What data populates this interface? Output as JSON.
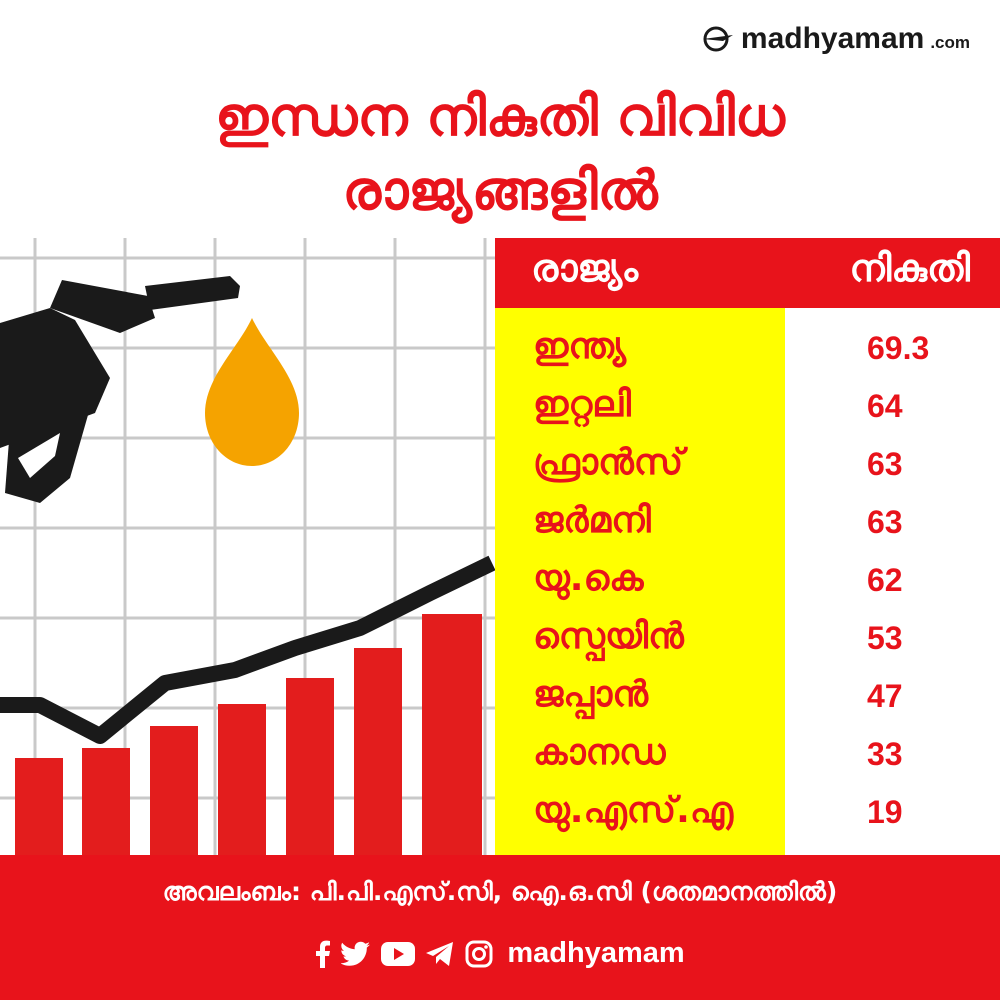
{
  "brand": {
    "name": "madhyamam",
    "domain": ".com"
  },
  "title": {
    "line1": "ഇന്ധന നികുതി വിവിധ",
    "line2": "രാജ്യങ്ങളിൽ"
  },
  "table": {
    "headers": {
      "country": "രാജ്യം",
      "tax": "നികുതി"
    },
    "rows": [
      {
        "country": "ഇന്ത്യ",
        "tax": "69.3"
      },
      {
        "country": "ഇറ്റലി",
        "tax": "64"
      },
      {
        "country": "ഫ്രാൻസ്",
        "tax": "63"
      },
      {
        "country": "ജർമനി",
        "tax": "63"
      },
      {
        "country": "യു.കെ",
        "tax": "62"
      },
      {
        "country": "സ്പെയിൻ",
        "tax": "53"
      },
      {
        "country": "ജപ്പാൻ",
        "tax": "47"
      },
      {
        "country": "കാനഡ",
        "tax": "33"
      },
      {
        "country": "യു.എസ്.എ",
        "tax": "19"
      }
    ]
  },
  "footer": {
    "source": "അവലംബം: പി.പി.എസ്.സി, ഐ.ഒ.സി (ശതമാനത്തിൽ)",
    "handle": "madhyamam",
    "icons": [
      "facebook-icon",
      "twitter-icon",
      "youtube-icon",
      "telegram-icon",
      "instagram-icon"
    ]
  },
  "colors": {
    "accent": "#e8131b",
    "highlight": "#ffff00",
    "drop": "#f5a300",
    "ink": "#1a1a1a"
  }
}
